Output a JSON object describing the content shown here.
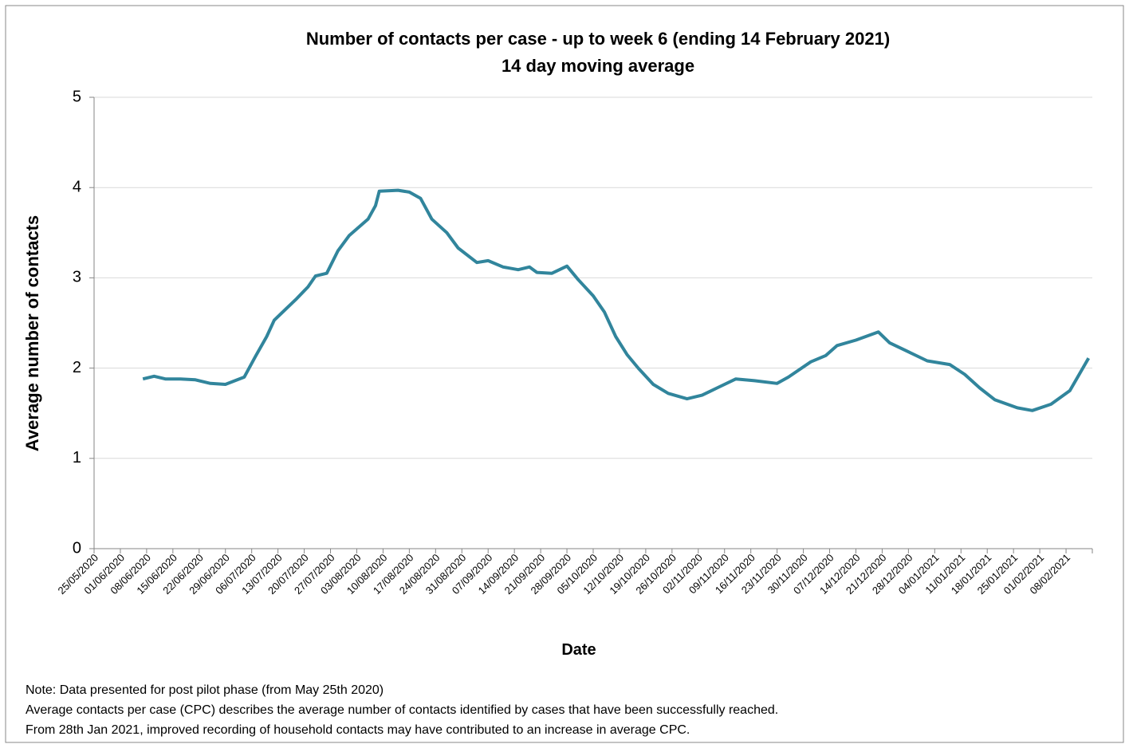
{
  "chart_data": {
    "type": "line",
    "title": "Number of contacts per case - up to week 6 (ending 14 February 2021)",
    "subtitle": "14 day moving average",
    "x_label": "Date",
    "y_label": "Average number of contacts",
    "x": [
      "07/06/2020",
      "10/06/2020",
      "13/06/2020",
      "17/06/2020",
      "21/06/2020",
      "25/06/2020",
      "29/06/2020",
      "04/07/2020",
      "07/07/2020",
      "10/07/2020",
      "12/07/2020",
      "15/07/2020",
      "18/07/2020",
      "21/07/2020",
      "23/07/2020",
      "26/07/2020",
      "29/07/2020",
      "01/08/2020",
      "06/08/2020",
      "08/08/2020",
      "09/08/2020",
      "14/08/2020",
      "17/08/2020",
      "20/08/2020",
      "23/08/2020",
      "27/08/2020",
      "30/08/2020",
      "04/09/2020",
      "07/09/2020",
      "11/09/2020",
      "15/09/2020",
      "18/09/2020",
      "20/09/2020",
      "24/09/2020",
      "28/09/2020",
      "01/10/2020",
      "05/10/2020",
      "08/10/2020",
      "11/10/2020",
      "14/10/2020",
      "17/10/2020",
      "21/10/2020",
      "25/10/2020",
      "30/10/2020",
      "03/11/2020",
      "07/11/2020",
      "12/11/2020",
      "17/11/2020",
      "23/11/2020",
      "26/11/2020",
      "02/12/2020",
      "06/12/2020",
      "09/12/2020",
      "14/12/2020",
      "20/12/2020",
      "23/12/2020",
      "28/12/2020",
      "02/01/2021",
      "08/01/2021",
      "12/01/2021",
      "16/01/2021",
      "20/01/2021",
      "26/01/2021",
      "30/01/2021",
      "04/02/2021",
      "09/02/2021",
      "14/02/2021"
    ],
    "series": [
      {
        "name": "Average number of contacts",
        "color": "#31859c",
        "values": [
          1.88,
          1.91,
          1.88,
          1.88,
          1.87,
          1.83,
          1.82,
          1.9,
          2.13,
          2.35,
          2.53,
          2.65,
          2.77,
          2.9,
          3.02,
          3.05,
          3.3,
          3.47,
          3.65,
          3.8,
          3.96,
          3.97,
          3.95,
          3.88,
          3.65,
          3.5,
          3.33,
          3.17,
          3.19,
          3.12,
          3.09,
          3.12,
          3.06,
          3.05,
          3.13,
          2.98,
          2.8,
          2.62,
          2.35,
          2.15,
          2.0,
          1.82,
          1.72,
          1.66,
          1.7,
          1.78,
          1.88,
          1.86,
          1.83,
          1.9,
          2.07,
          2.14,
          2.25,
          2.31,
          2.4,
          2.28,
          2.18,
          2.08,
          2.04,
          1.93,
          1.78,
          1.65,
          1.56,
          1.53,
          1.6,
          1.75,
          2.11
        ]
      }
    ],
    "xlim": [
      "25/05/2020",
      "15/02/2021"
    ],
    "xticks": [
      "25/05/2020",
      "01/06/2020",
      "08/06/2020",
      "15/06/2020",
      "22/06/2020",
      "29/06/2020",
      "06/07/2020",
      "13/07/2020",
      "20/07/2020",
      "27/07/2020",
      "03/08/2020",
      "10/08/2020",
      "17/08/2020",
      "24/08/2020",
      "31/08/2020",
      "07/09/2020",
      "14/09/2020",
      "21/09/2020",
      "28/09/2020",
      "05/10/2020",
      "12/10/2020",
      "19/10/2020",
      "26/10/2020",
      "02/11/2020",
      "09/11/2020",
      "16/11/2020",
      "23/11/2020",
      "30/11/2020",
      "07/12/2020",
      "14/12/2020",
      "21/12/2020",
      "28/12/2020",
      "04/01/2021",
      "11/01/2021",
      "18/01/2021",
      "25/01/2021",
      "01/02/2021",
      "08/02/2021"
    ],
    "ylim": [
      0,
      5
    ],
    "yticks": [
      0,
      1,
      2,
      3,
      4,
      5
    ],
    "grid": true,
    "notes": [
      "Note: Data presented  for post pilot phase (from May 25th 2020)",
      "Average contacts per case (CPC) describes the average number of contacts identified by cases that have been successfully reached.",
      "From 28th Jan 2021, improved recording of household contacts may have contributed to an increase in average CPC."
    ]
  }
}
